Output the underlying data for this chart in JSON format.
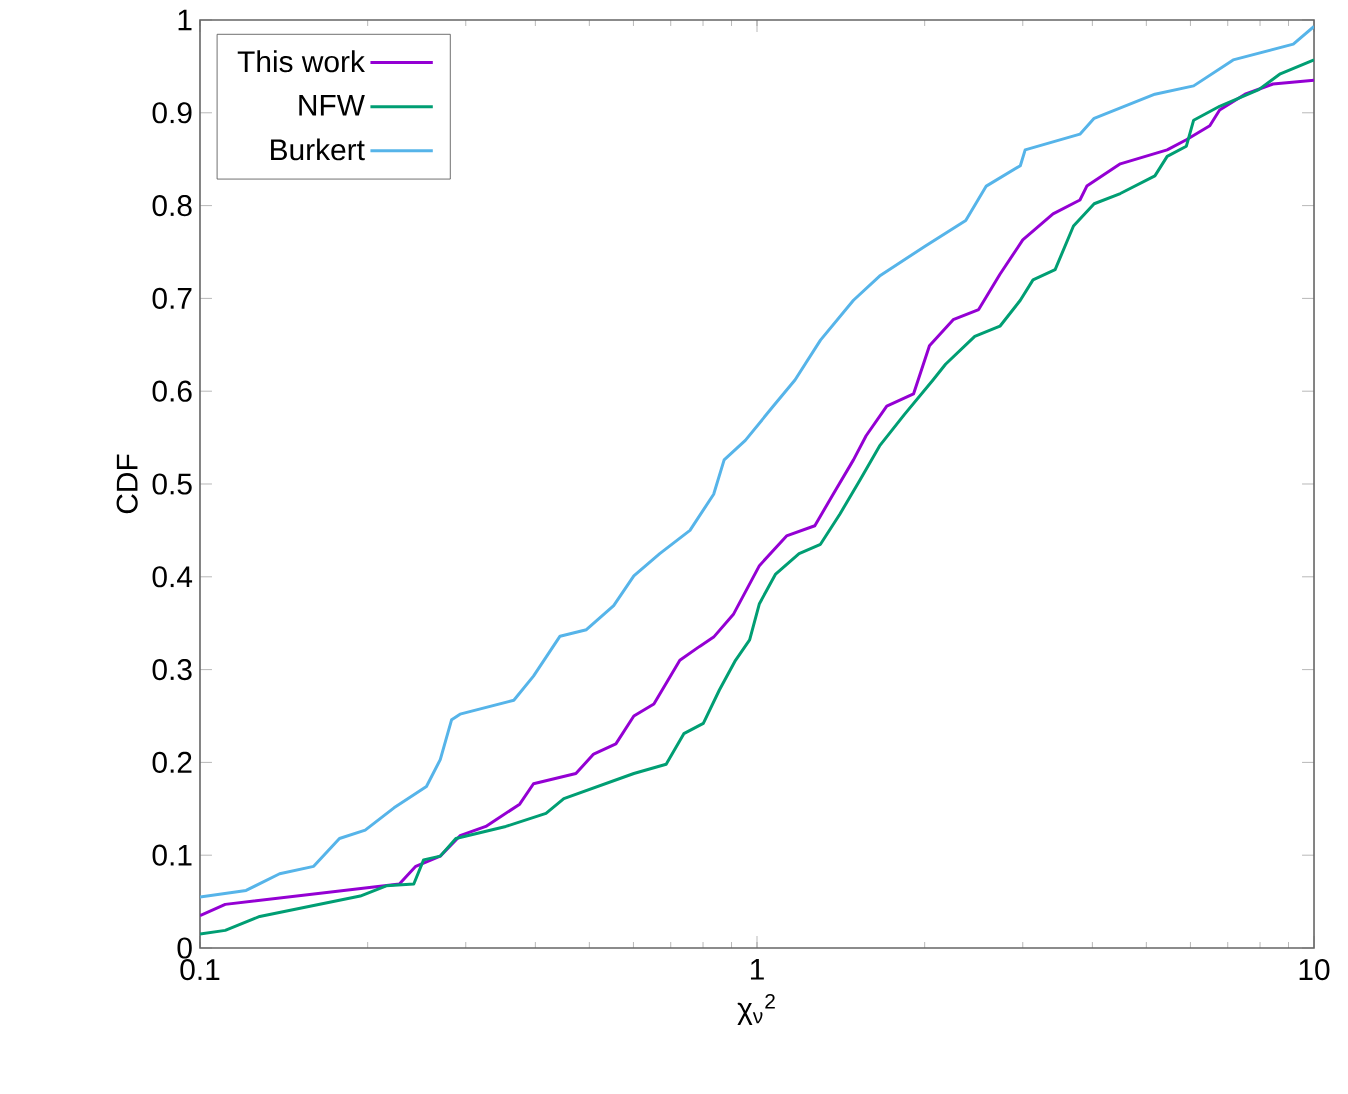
{
  "chart_data": {
    "type": "line",
    "xlabel": "χ$_{ν}$$^{2}$",
    "ylabel": "CDF",
    "log": "x",
    "xlim": [
      0.1,
      10
    ],
    "ylim": [
      0,
      1
    ],
    "xticks": [
      0.1,
      1,
      10
    ],
    "yticks": [
      0,
      0.1,
      0.2,
      0.3,
      0.4,
      0.5,
      0.6,
      0.7,
      0.8,
      0.9,
      1
    ],
    "legend": "top left",
    "grid": false,
    "marker": "none",
    "line_style": "solid",
    "series": [
      {
        "name": "This work",
        "color": "#9400d3",
        "x": [
          0.1,
          0.111,
          0.228,
          0.244,
          0.27,
          0.293,
          0.326,
          0.375,
          0.397,
          0.473,
          0.509,
          0.558,
          0.601,
          0.653,
          0.727,
          0.789,
          0.836,
          0.908,
          1.01,
          1.13,
          1.27,
          1.37,
          1.49,
          1.57,
          1.71,
          1.91,
          2.04,
          2.25,
          2.5,
          2.73,
          3.0,
          3.4,
          3.8,
          3.91,
          4.49,
          5.45,
          5.9,
          6.5,
          6.77,
          7.52,
          8.44,
          10
        ],
        "values": [
          0.035,
          0.047,
          0.069,
          0.088,
          0.099,
          0.121,
          0.131,
          0.155,
          0.177,
          0.188,
          0.209,
          0.22,
          0.25,
          0.263,
          0.31,
          0.325,
          0.335,
          0.36,
          0.412,
          0.444,
          0.455,
          0.489,
          0.526,
          0.552,
          0.584,
          0.597,
          0.649,
          0.677,
          0.688,
          0.726,
          0.763,
          0.791,
          0.806,
          0.821,
          0.845,
          0.86,
          0.871,
          0.886,
          0.903,
          0.92,
          0.931,
          0.935
        ]
      },
      {
        "name": "NFW",
        "color": "#009e73",
        "x": [
          0.1,
          0.111,
          0.128,
          0.194,
          0.216,
          0.242,
          0.252,
          0.27,
          0.288,
          0.354,
          0.418,
          0.45,
          0.601,
          0.687,
          0.739,
          0.801,
          0.856,
          0.915,
          0.97,
          1.01,
          1.08,
          1.19,
          1.3,
          1.41,
          1.53,
          1.66,
          1.84,
          2.07,
          2.18,
          2.46,
          2.73,
          2.97,
          3.13,
          3.43,
          3.7,
          4.03,
          4.49,
          5.18,
          5.45,
          5.9,
          6.08,
          6.77,
          7.96,
          8.7,
          10
        ],
        "values": [
          0.015,
          0.019,
          0.034,
          0.056,
          0.067,
          0.069,
          0.095,
          0.099,
          0.118,
          0.131,
          0.145,
          0.161,
          0.188,
          0.198,
          0.231,
          0.242,
          0.278,
          0.31,
          0.332,
          0.371,
          0.403,
          0.425,
          0.435,
          0.468,
          0.504,
          0.541,
          0.575,
          0.612,
          0.629,
          0.659,
          0.67,
          0.698,
          0.72,
          0.731,
          0.778,
          0.802,
          0.813,
          0.832,
          0.853,
          0.864,
          0.892,
          0.907,
          0.925,
          0.942,
          0.957
        ]
      },
      {
        "name": "Burkert",
        "color": "#56b4e9",
        "x": [
          0.1,
          0.121,
          0.139,
          0.16,
          0.178,
          0.198,
          0.223,
          0.255,
          0.27,
          0.283,
          0.293,
          0.366,
          0.397,
          0.443,
          0.494,
          0.553,
          0.601,
          0.669,
          0.758,
          0.836,
          0.873,
          0.953,
          1.07,
          1.17,
          1.3,
          1.49,
          1.66,
          2.0,
          2.37,
          2.58,
          2.97,
          3.03,
          3.8,
          4.03,
          5.18,
          6.08,
          7.16,
          9.18,
          10
        ],
        "values": [
          0.055,
          0.062,
          0.08,
          0.088,
          0.118,
          0.127,
          0.151,
          0.174,
          0.203,
          0.246,
          0.252,
          0.267,
          0.293,
          0.336,
          0.343,
          0.369,
          0.401,
          0.425,
          0.45,
          0.489,
          0.526,
          0.547,
          0.584,
          0.612,
          0.655,
          0.698,
          0.724,
          0.756,
          0.784,
          0.821,
          0.843,
          0.86,
          0.877,
          0.894,
          0.92,
          0.929,
          0.957,
          0.974,
          0.993
        ]
      }
    ]
  }
}
